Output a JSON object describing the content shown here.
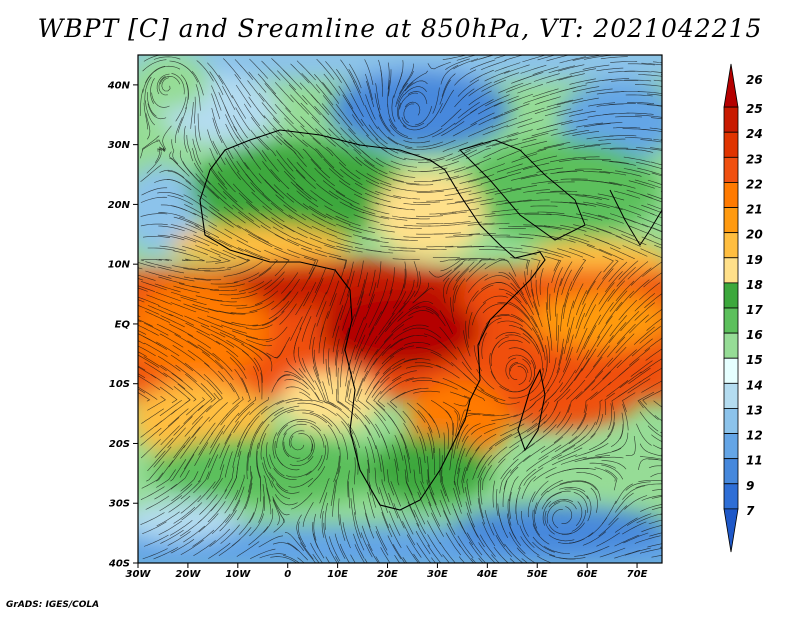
{
  "title": "WBPT [C] and Sreamline at 850hPa, VT: 2021042215",
  "credit": "GrADS: IGES/COLA",
  "map": {
    "lat_labels": [
      "40N",
      "30N",
      "20N",
      "10N",
      "EQ",
      "10S",
      "20S",
      "30S",
      "40S"
    ],
    "lat_values": [
      40,
      30,
      20,
      10,
      0,
      -10,
      -20,
      -30,
      -40
    ],
    "lon_labels": [
      "30W",
      "20W",
      "10W",
      "0",
      "10E",
      "20E",
      "30E",
      "40E",
      "50E",
      "60E",
      "70E"
    ],
    "lon_values": [
      -30,
      -20,
      -10,
      0,
      10,
      20,
      30,
      40,
      50,
      60,
      70
    ],
    "lat_range": [
      -40,
      45
    ],
    "lon_range": [
      -30,
      75
    ]
  },
  "colorbar": {
    "labels": [
      "26",
      "25",
      "24",
      "23",
      "22",
      "21",
      "20",
      "19",
      "18",
      "17",
      "16",
      "15",
      "14",
      "13",
      "12",
      "11",
      "9",
      "7"
    ],
    "colors": [
      "#b40000",
      "#c81a00",
      "#e03400",
      "#f05010",
      "#ff7a00",
      "#ff9a10",
      "#ffbe40",
      "#ffe08a",
      "#3ca83c",
      "#5cc05c",
      "#96dc96",
      "#e6ffff",
      "#b4dcf0",
      "#8cc3eb",
      "#64a5e6",
      "#4688dc",
      "#2e6ed6",
      "#1e58c8"
    ]
  }
}
